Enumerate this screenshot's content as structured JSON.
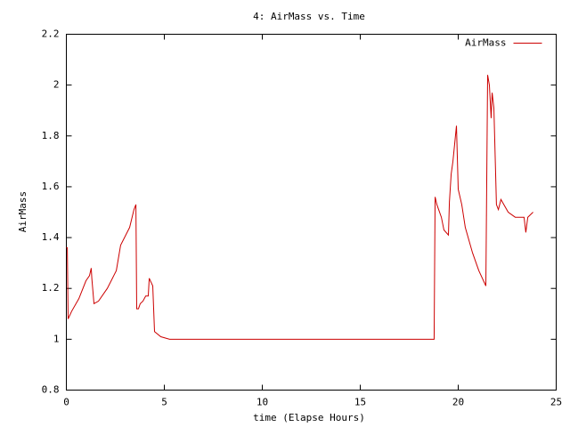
{
  "chart_data": {
    "type": "line",
    "title": "4: AirMass vs. Time",
    "xlabel": "time (Elapse Hours)",
    "ylabel": "AirMass",
    "x": [
      0,
      0.05,
      0.09,
      0.27,
      0.64,
      1.0,
      1.18,
      1.27,
      1.3,
      1.41,
      1.64,
      2.09,
      2.55,
      2.77,
      3.23,
      3.45,
      3.55,
      3.59,
      3.68,
      3.77,
      3.91,
      4.05,
      4.18,
      4.23,
      4.41,
      4.5,
      4.82,
      5.27,
      18.77,
      18.82,
      18.91,
      19.14,
      19.27,
      19.5,
      19.55,
      19.64,
      19.73,
      19.91,
      20.0,
      20.18,
      20.36,
      20.73,
      21.05,
      21.41,
      21.5,
      21.59,
      21.68,
      21.73,
      21.82,
      21.95,
      22.05,
      22.18,
      22.55,
      22.91,
      23.36,
      23.45,
      23.55,
      23.82
    ],
    "series": [
      {
        "name": "AirMass",
        "color": "#cc0000",
        "values": [
          1.36,
          1.36,
          1.08,
          1.11,
          1.16,
          1.23,
          1.25,
          1.28,
          1.24,
          1.14,
          1.15,
          1.2,
          1.27,
          1.37,
          1.44,
          1.51,
          1.53,
          1.12,
          1.12,
          1.14,
          1.15,
          1.17,
          1.17,
          1.24,
          1.21,
          1.03,
          1.01,
          1.0,
          1.0,
          1.56,
          1.53,
          1.48,
          1.43,
          1.41,
          1.54,
          1.65,
          1.7,
          1.84,
          1.59,
          1.53,
          1.44,
          1.34,
          1.27,
          1.21,
          2.04,
          2.0,
          1.87,
          1.97,
          1.91,
          1.53,
          1.51,
          1.55,
          1.5,
          1.48,
          1.48,
          1.42,
          1.48,
          1.5
        ]
      }
    ],
    "xlim": [
      0,
      25
    ],
    "xticks": [
      0,
      5,
      10,
      15,
      20,
      25
    ],
    "ylim": [
      0.8,
      2.2
    ],
    "yticks": [
      0.8,
      1,
      1.2,
      1.4,
      1.6,
      1.8,
      2,
      2.2
    ],
    "legend": "top-right"
  }
}
